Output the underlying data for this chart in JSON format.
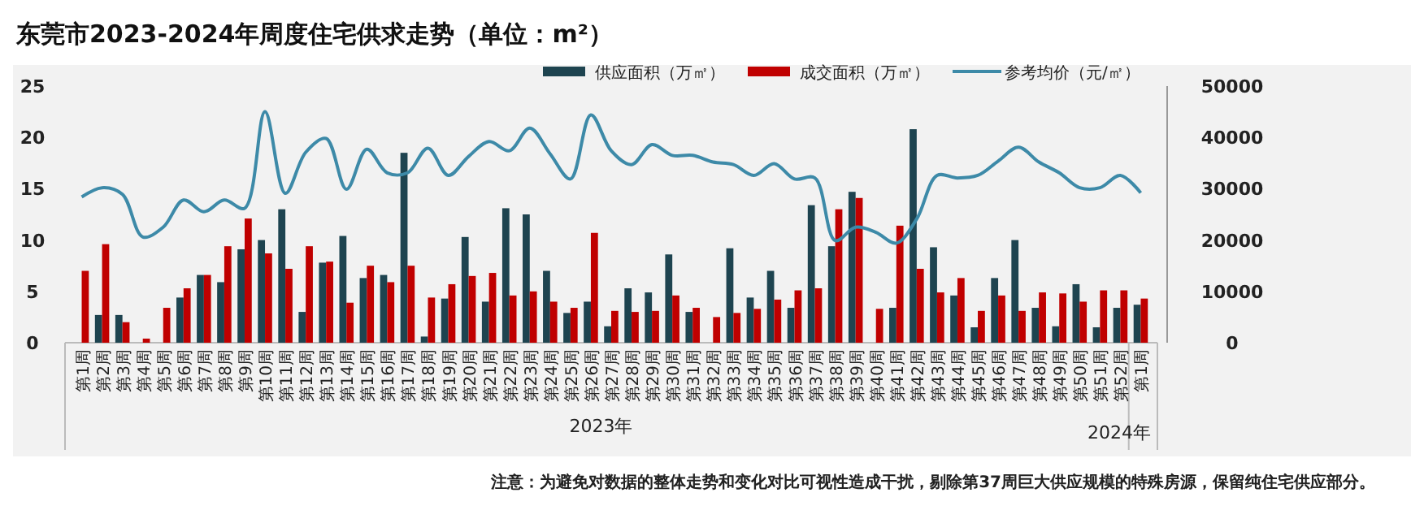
{
  "chart_data": {
    "type": "bar",
    "title": "东莞市2023-2024年周度住宅供求走势（单位：m²）",
    "categories": [
      "第1周",
      "第2周",
      "第3周",
      "第4周",
      "第5周",
      "第6周",
      "第7周",
      "第8周",
      "第9周",
      "第10周",
      "第11周",
      "第12周",
      "第13周",
      "第14周",
      "第15周",
      "第16周",
      "第17周",
      "第18周",
      "第19周",
      "第20周",
      "第21周",
      "第22周",
      "第23周",
      "第24周",
      "第25周",
      "第26周",
      "第27周",
      "第28周",
      "第29周",
      "第30周",
      "第31周",
      "第32周",
      "第33周",
      "第34周",
      "第35周",
      "第36周",
      "第37周",
      "第38周",
      "第39周",
      "第40周",
      "第41周",
      "第42周",
      "第43周",
      "第44周",
      "第45周",
      "第46周",
      "第47周",
      "第48周",
      "第49周",
      "第50周",
      "第51周",
      "第52周",
      "第1周"
    ],
    "series": [
      {
        "name": "供应面积（万㎡）",
        "color": "#1e4450",
        "values": [
          0,
          2.7,
          2.7,
          0,
          0,
          4.4,
          6.6,
          5.9,
          9.1,
          10.0,
          13.0,
          3.0,
          7.8,
          10.4,
          6.3,
          6.6,
          18.5,
          0.6,
          4.3,
          10.3,
          4.0,
          13.1,
          12.5,
          7.0,
          2.9,
          4.0,
          1.6,
          5.3,
          4.9,
          8.6,
          3.0,
          0,
          9.2,
          4.4,
          7.0,
          3.4,
          13.4,
          9.4,
          14.7,
          0,
          3.4,
          20.8,
          9.3,
          4.6,
          1.5,
          6.3,
          10.0,
          3.4,
          1.6,
          5.7,
          1.5,
          3.4,
          3.7
        ]
      },
      {
        "name": "成交面积（万㎡）",
        "color": "#c00000",
        "values": [
          7.0,
          9.6,
          2.0,
          0.4,
          3.4,
          5.3,
          6.6,
          9.4,
          12.1,
          8.7,
          7.2,
          9.4,
          7.9,
          3.9,
          7.5,
          5.9,
          7.5,
          4.4,
          5.7,
          6.5,
          6.8,
          4.6,
          5.0,
          4.0,
          3.4,
          10.7,
          3.1,
          3.0,
          3.1,
          4.6,
          3.4,
          2.5,
          2.9,
          3.3,
          4.2,
          5.1,
          5.3,
          13.0,
          14.1,
          3.3,
          11.4,
          7.2,
          4.9,
          6.3,
          3.1,
          4.6,
          3.1,
          4.9,
          4.8,
          4.0,
          5.1,
          5.1,
          4.3
        ]
      },
      {
        "name": "参考均价（元/㎡）",
        "type": "line",
        "axis": "y2",
        "color": "#3d8aa8",
        "values": [
          28400,
          30200,
          28900,
          20600,
          22500,
          27800,
          25500,
          27800,
          26200,
          45000,
          29100,
          37100,
          39800,
          29900,
          37700,
          33100,
          33100,
          37900,
          32600,
          36300,
          39200,
          37400,
          41800,
          36800,
          31900,
          44400,
          37400,
          34700,
          38600,
          36500,
          36500,
          35200,
          34700,
          32600,
          34900,
          31900,
          32100,
          19900,
          22500,
          21500,
          19400,
          24100,
          32600,
          32100,
          32600,
          35400,
          38100,
          35200,
          33100,
          30200,
          30200,
          32600,
          29200
        ]
      }
    ],
    "ylim": [
      0,
      25
    ],
    "yticks": [
      0,
      5,
      10,
      15,
      20,
      25
    ],
    "y2lim": [
      0,
      50000
    ],
    "y2ticks": [
      0,
      10000,
      20000,
      30000,
      40000,
      50000
    ],
    "legend": "top right",
    "marker": "none",
    "annotations": [
      "2023年",
      "2024年",
      "注意：为避免对数据的整体走势和变化对比可视性造成干扰，剔除第37周巨大供应规模的特殊房源，保留纯住宅供应部分。"
    ]
  }
}
